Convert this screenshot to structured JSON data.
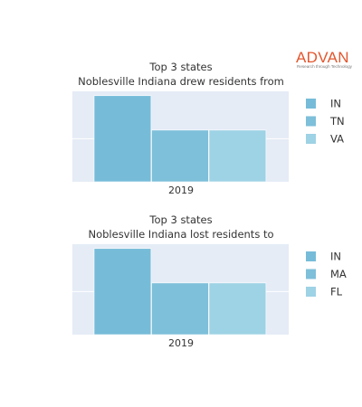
{
  "logo": {
    "wordmark": "ADVAN",
    "tagline": "Research through Technology",
    "color": "#e2562d"
  },
  "chart_data": [
    {
      "type": "bar",
      "title": "Top 3 states",
      "subtitle": "Noblesville Indiana drew residents from",
      "categories": [
        "2019"
      ],
      "series": [
        {
          "name": "IN",
          "values": [
            1.0
          ],
          "color": "#76bcd9"
        },
        {
          "name": "TN",
          "values": [
            0.6
          ],
          "color": "#7ebfd9"
        },
        {
          "name": "VA",
          "values": [
            0.6
          ],
          "color": "#9ed2e5"
        }
      ],
      "ylim": [
        0,
        1.05
      ],
      "grid": true,
      "legend": "right"
    },
    {
      "type": "bar",
      "title": "Top 3 states",
      "subtitle": "Noblesville Indiana lost residents to",
      "categories": [
        "2019"
      ],
      "series": [
        {
          "name": "IN",
          "values": [
            1.0
          ],
          "color": "#76bcd9"
        },
        {
          "name": "MA",
          "values": [
            0.6
          ],
          "color": "#7ebfd9"
        },
        {
          "name": "FL",
          "values": [
            0.6
          ],
          "color": "#9ed2e5"
        }
      ],
      "ylim": [
        0,
        1.05
      ],
      "grid": true,
      "legend": "right"
    }
  ],
  "colors": {
    "plot_background": "#e5ecf6",
    "gridline": "#ffffff"
  }
}
